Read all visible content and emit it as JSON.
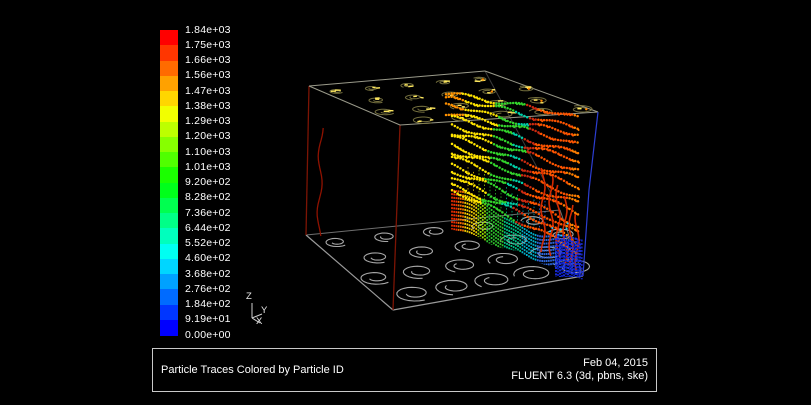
{
  "window": {
    "background": "#000000"
  },
  "colorbar": {
    "labels": [
      "1.84e+03",
      "1.75e+03",
      "1.66e+03",
      "1.56e+03",
      "1.47e+03",
      "1.38e+03",
      "1.29e+03",
      "1.20e+03",
      "1.10e+03",
      "1.01e+03",
      "9.20e+02",
      "8.28e+02",
      "7.36e+02",
      "6.44e+02",
      "5.52e+02",
      "4.60e+02",
      "3.68e+02",
      "2.76e+02",
      "1.84e+02",
      "9.19e+01",
      "0.00e+00"
    ],
    "segment_colors": [
      "#ff0000",
      "#ff3600",
      "#ff6b00",
      "#ffa100",
      "#ffd600",
      "#f2ff00",
      "#bdff00",
      "#87ff00",
      "#50ff00",
      "#1bff00",
      "#00ff1b",
      "#00ff50",
      "#00ff87",
      "#00ffbd",
      "#00fff2",
      "#00d6ff",
      "#00a1ff",
      "#006bff",
      "#0036ff",
      "#0000ff"
    ]
  },
  "axis_triad": {
    "z_label": "Z",
    "y_label": "Y",
    "x_label": "X"
  },
  "caption": {
    "title": "Particle Traces Colored by Particle ID",
    "date": "Feb 04, 2015",
    "solver": "FLUENT 6.3 (3d, pbns, ske)"
  },
  "scene": {
    "edge_colors": {
      "top_face": "#9a9a8a",
      "bottom_face_front": "#9a9a9a",
      "bottom_face_back": "#6e6e6e",
      "left_edges": "#7c1404",
      "right_edge": "#2c3ed2",
      "hidden_edge": "#3a3a3a",
      "stray_red_trace": "#8f1200"
    },
    "swirl_colors": {
      "top_face": "#7d7742",
      "top_face_accent": "#ffe95e",
      "top_face_accent_right": "#ff8800",
      "bottom_face": "#b5b5b5"
    },
    "curtain_bands": [
      {
        "t": 0.0,
        "c": "#ff3000"
      },
      {
        "t": 0.05,
        "c": "#ff7300"
      },
      {
        "t": 0.11,
        "c": "#ffd800"
      },
      {
        "t": 0.18,
        "c": "#9fe800"
      },
      {
        "t": 0.27,
        "c": "#2fd32f"
      },
      {
        "t": 0.4,
        "c": "#00cf8e"
      },
      {
        "t": 0.53,
        "c": "#00b9d6"
      },
      {
        "t": 0.66,
        "c": "#2f6ce8"
      },
      {
        "t": 0.8,
        "c": "#2443dd"
      },
      {
        "t": 0.92,
        "c": "#1526c4"
      }
    ],
    "trace_bands": [
      {
        "t": 0.0,
        "c": "#ffe400"
      },
      {
        "t": 0.31,
        "c": "#33d52c"
      },
      {
        "t": 0.47,
        "c": "#00cfa8"
      },
      {
        "t": 0.56,
        "c": "#cc2a10"
      },
      {
        "t": 0.64,
        "c": "#ff5500"
      },
      {
        "t": 0.93,
        "c": "#ff7f00"
      }
    ],
    "trace_tip_color": "#ff9100",
    "red_streak_color": "#dd2c00",
    "blue_patch_colors": [
      "#1c31e8",
      "#0a1ecf"
    ],
    "blue_patch_sparkle": "#19c8ff",
    "triad_line_color": "#d0d0d0"
  }
}
